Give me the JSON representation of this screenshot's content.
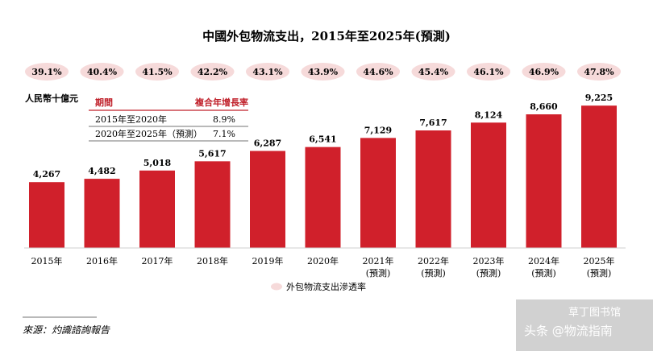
{
  "chart_data": {
    "type": "bar",
    "title": "中國外包物流支出，2015年至2025年(預測)",
    "ylabel": "人民幣十億元",
    "categories": [
      "2015年",
      "2016年",
      "2017年",
      "2018年",
      "2019年",
      "2020年",
      "2021年",
      "2022年",
      "2023年",
      "2024年",
      "2025年"
    ],
    "category_notes": [
      "",
      "",
      "",
      "",
      "",
      "",
      "(預測)",
      "(預測)",
      "(預測)",
      "(預測)",
      "(預測)"
    ],
    "values": [
      4267,
      4482,
      5018,
      5617,
      6287,
      6541,
      7129,
      7617,
      8124,
      8660,
      9225
    ],
    "value_labels": [
      "4,267",
      "4,482",
      "5,018",
      "5,617",
      "6,287",
      "6,541",
      "7,129",
      "7,617",
      "8,124",
      "8,660",
      "9,225"
    ],
    "penetration": [
      "39.1%",
      "40.4%",
      "41.5%",
      "42.2%",
      "43.1%",
      "43.9%",
      "44.6%",
      "45.4%",
      "46.1%",
      "46.9%",
      "47.8%"
    ],
    "penetration_legend": "外包物流支出滲透率",
    "ylim": [
      0,
      9600
    ],
    "grid": false,
    "colors": {
      "bar": "#d0202b",
      "ellipse": "#f6dada",
      "table_line": "#c0202a"
    }
  },
  "cagr_table": {
    "header_period": "期間",
    "header_rate": "複合年增長率",
    "rows": [
      {
        "period": "2015年至2020年",
        "rate": "8.9%"
      },
      {
        "period": "2020年至2025年（預測）",
        "rate": "7.1%"
      }
    ]
  },
  "source": "來源：灼識諮詢報告",
  "watermark": "头条 @物流指南",
  "watermark_logo": "草丁图书馆"
}
